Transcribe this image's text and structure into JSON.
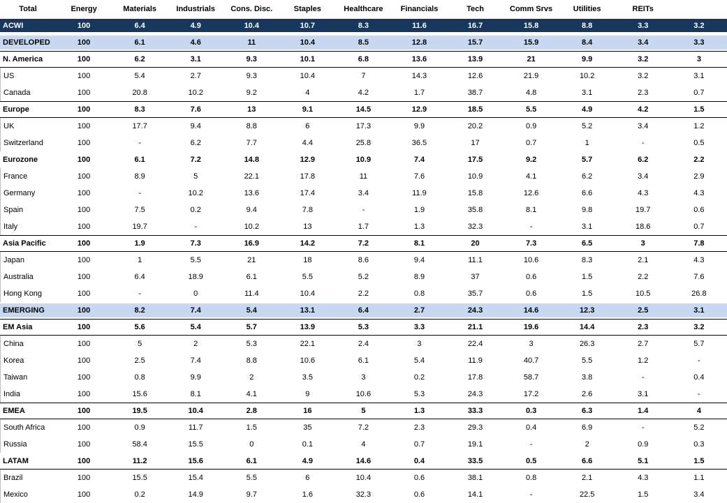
{
  "table": {
    "columns": [
      "Total",
      "Energy",
      "Materials",
      "Industrials",
      "Cons. Disc.",
      "Staples",
      "Healthcare",
      "Financials",
      "Tech",
      "Comm Srvs",
      "Utilities",
      "REITs"
    ],
    "missing_value_symbol": "-",
    "colors": {
      "acwi_row_bg": "#17375D",
      "acwi_row_text": "#FFFFFF",
      "group_row_bg": "#C6D9F0",
      "region_border": "#000000",
      "left_edge_gray": "#C0C0C0",
      "text": "#000000"
    },
    "rows": [
      {
        "name": "ACWI",
        "type": "total-dark",
        "values": [
          "100",
          "6.4",
          "4.9",
          "10.4",
          "10.7",
          "8.3",
          "11.6",
          "16.7",
          "15.8",
          "8.8",
          "3.3",
          "3.2"
        ]
      },
      {
        "name": "DEVELOPED",
        "type": "group-blue",
        "values": [
          "100",
          "6.1",
          "4.6",
          "11",
          "10.4",
          "8.5",
          "12.8",
          "15.7",
          "15.9",
          "8.4",
          "3.4",
          "3.3"
        ]
      },
      {
        "name": "N. America",
        "type": "region-bold",
        "values": [
          "100",
          "6.2",
          "3.1",
          "9.3",
          "10.1",
          "6.8",
          "13.6",
          "13.9",
          "21",
          "9.9",
          "3.2",
          "3"
        ]
      },
      {
        "name": "US",
        "type": "country",
        "values": [
          "100",
          "5.4",
          "2.7",
          "9.3",
          "10.4",
          "7",
          "14.3",
          "12.6",
          "21.9",
          "10.2",
          "3.2",
          "3.1"
        ]
      },
      {
        "name": "Canada",
        "type": "country",
        "values": [
          "100",
          "20.8",
          "10.2",
          "9.2",
          "4",
          "4.2",
          "1.7",
          "38.7",
          "4.8",
          "3.1",
          "2.3",
          "0.7"
        ]
      },
      {
        "name": "Europe",
        "type": "region-bold",
        "values": [
          "100",
          "8.3",
          "7.6",
          "13",
          "9.1",
          "14.5",
          "12.9",
          "18.5",
          "5.5",
          "4.9",
          "4.2",
          "1.5"
        ]
      },
      {
        "name": "UK",
        "type": "country",
        "values": [
          "100",
          "17.7",
          "9.4",
          "8.8",
          "6",
          "17.3",
          "9.9",
          "20.2",
          "0.9",
          "5.2",
          "3.4",
          "1.2"
        ]
      },
      {
        "name": "Switzerland",
        "type": "country",
        "values": [
          "100",
          "-",
          "6.2",
          "7.7",
          "4.4",
          "25.8",
          "36.5",
          "17",
          "0.7",
          "1",
          "-",
          "0.5"
        ]
      },
      {
        "name": "Eurozone",
        "type": "bold",
        "values": [
          "100",
          "6.1",
          "7.2",
          "14.8",
          "12.9",
          "10.9",
          "7.4",
          "17.5",
          "9.2",
          "5.7",
          "6.2",
          "2.2"
        ]
      },
      {
        "name": "France",
        "type": "country",
        "values": [
          "100",
          "8.9",
          "5",
          "22.1",
          "17.8",
          "11",
          "7.6",
          "10.9",
          "4.1",
          "6.2",
          "3.4",
          "2.9"
        ]
      },
      {
        "name": "Germany",
        "type": "country",
        "values": [
          "100",
          "-",
          "10.2",
          "13.6",
          "17.4",
          "3.4",
          "11.9",
          "15.8",
          "12.6",
          "6.6",
          "4.3",
          "4.3"
        ]
      },
      {
        "name": "Spain",
        "type": "country",
        "values": [
          "100",
          "7.5",
          "0.2",
          "9.4",
          "7.8",
          "-",
          "1.9",
          "35.8",
          "8.1",
          "9.8",
          "19.7",
          "0.6"
        ]
      },
      {
        "name": "Italy",
        "type": "country",
        "values": [
          "100",
          "19.7",
          "-",
          "10.2",
          "13",
          "1.7",
          "1.3",
          "32.3",
          "-",
          "3.1",
          "18.6",
          "0.7"
        ]
      },
      {
        "name": "Asia Pacific",
        "type": "region-bold",
        "values": [
          "100",
          "1.9",
          "7.3",
          "16.9",
          "14.2",
          "7.2",
          "8.1",
          "20",
          "7.3",
          "6.5",
          "3",
          "7.8"
        ]
      },
      {
        "name": "Japan",
        "type": "country",
        "values": [
          "100",
          "1",
          "5.5",
          "21",
          "18",
          "8.6",
          "9.4",
          "11.1",
          "10.6",
          "8.3",
          "2.1",
          "4.3"
        ]
      },
      {
        "name": "Australia",
        "type": "country",
        "values": [
          "100",
          "6.4",
          "18.9",
          "6.1",
          "5.5",
          "5.2",
          "8.9",
          "37",
          "0.6",
          "1.5",
          "2.2",
          "7.6"
        ]
      },
      {
        "name": "Hong Kong",
        "type": "country",
        "values": [
          "100",
          "-",
          "0",
          "11.4",
          "10.4",
          "2.2",
          "0.8",
          "35.7",
          "0.6",
          "1.5",
          "10.5",
          "26.8"
        ]
      },
      {
        "name": "EMERGING",
        "type": "group-blue",
        "values": [
          "100",
          "8.2",
          "7.4",
          "5.4",
          "13.1",
          "6.4",
          "2.7",
          "24.3",
          "14.6",
          "12.3",
          "2.5",
          "3.1"
        ]
      },
      {
        "name": "EM Asia",
        "type": "region-bold",
        "values": [
          "100",
          "5.6",
          "5.4",
          "5.7",
          "13.9",
          "5.3",
          "3.3",
          "21.1",
          "19.6",
          "14.4",
          "2.3",
          "3.2"
        ]
      },
      {
        "name": "China",
        "type": "country",
        "values": [
          "100",
          "5",
          "2",
          "5.3",
          "22.1",
          "2.4",
          "3",
          "22.4",
          "3",
          "26.3",
          "2.7",
          "5.7"
        ]
      },
      {
        "name": "Korea",
        "type": "country",
        "values": [
          "100",
          "2.5",
          "7.4",
          "8.8",
          "10.6",
          "6.1",
          "5.4",
          "11.9",
          "40.7",
          "5.5",
          "1.2",
          "-"
        ]
      },
      {
        "name": "Taiwan",
        "type": "country",
        "values": [
          "100",
          "0.8",
          "9.9",
          "2",
          "3.5",
          "3",
          "0.2",
          "17.8",
          "58.7",
          "3.8",
          "-",
          "0.4"
        ]
      },
      {
        "name": "India",
        "type": "country",
        "values": [
          "100",
          "15.6",
          "8.1",
          "4.1",
          "9",
          "10.6",
          "5.3",
          "24.3",
          "17.2",
          "2.6",
          "3.1",
          "-"
        ]
      },
      {
        "name": "EMEA",
        "type": "region-bold",
        "values": [
          "100",
          "19.5",
          "10.4",
          "2.8",
          "16",
          "5",
          "1.3",
          "33.3",
          "0.3",
          "6.3",
          "1.4",
          "4"
        ]
      },
      {
        "name": "South Africa",
        "type": "country",
        "values": [
          "100",
          "0.9",
          "11.7",
          "1.5",
          "35",
          "7.2",
          "2.3",
          "29.3",
          "0.4",
          "6.9",
          "-",
          "5.2"
        ]
      },
      {
        "name": "Russia",
        "type": "country",
        "values": [
          "100",
          "58.4",
          "15.5",
          "0",
          "0.1",
          "4",
          "0.7",
          "19.1",
          "-",
          "2",
          "0.9",
          "0.3"
        ]
      },
      {
        "name": "LATAM",
        "type": "region-bold-bottom-only",
        "values": [
          "100",
          "11.2",
          "15.6",
          "6.1",
          "4.9",
          "14.6",
          "0.4",
          "33.5",
          "0.5",
          "6.6",
          "5.1",
          "1.5"
        ]
      },
      {
        "name": "Brazil",
        "type": "country",
        "values": [
          "100",
          "15.5",
          "15.4",
          "5.5",
          "6",
          "10.4",
          "0.6",
          "38.1",
          "0.8",
          "2.1",
          "4.3",
          "1.1"
        ]
      },
      {
        "name": "Mexico",
        "type": "country",
        "values": [
          "100",
          "0.2",
          "14.9",
          "9.7",
          "1.6",
          "32.3",
          "0.6",
          "14.1",
          "-",
          "22.5",
          "1.5",
          "3.4"
        ]
      }
    ]
  }
}
